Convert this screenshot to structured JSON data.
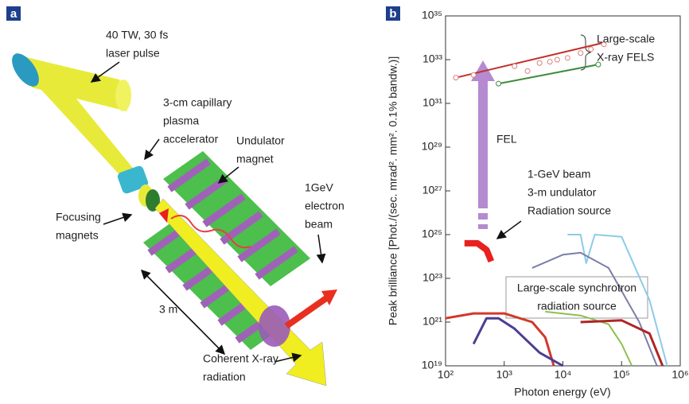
{
  "panel_a": {
    "label": "a",
    "laser": [
      "40 TW, 30 fs",
      "laser pulse"
    ],
    "accelerator": [
      "3-cm capillary",
      "plasma",
      "accelerator"
    ],
    "undulator": [
      "Undulator",
      "magnet"
    ],
    "beam": [
      "1GeV",
      "electron",
      "beam"
    ],
    "focusing": [
      "Focusing",
      "magnets"
    ],
    "length": "3 m",
    "radiation": [
      "Coherent X-ray",
      "radiation"
    ]
  },
  "chart_data": {
    "type": "line",
    "label": "b",
    "xlabel": "Photon energy (eV)",
    "ylabel": "Peak brilliance [Phot./(sec. mrad². mm². 0.1% bandw.)]",
    "log_x": true,
    "log_y": true,
    "xlim": [
      100,
      1000000
    ],
    "ylim": [
      1e+19,
      1e+35
    ],
    "xticks": [
      {
        "value": 100,
        "label": "10²"
      },
      {
        "value": 1000,
        "label": "10³"
      },
      {
        "value": 10000,
        "label": "10⁴"
      },
      {
        "value": 100000,
        "label": "10⁵"
      },
      {
        "value": 1000000,
        "label": "10⁶"
      }
    ],
    "yticks": [
      {
        "value": 1e+19,
        "label": "10¹⁹"
      },
      {
        "value": 1e+21,
        "label": "10²¹"
      },
      {
        "value": 1e+23,
        "label": "10²³"
      },
      {
        "value": 1e+25,
        "label": "10²⁵"
      },
      {
        "value": 1e+27,
        "label": "10²⁷"
      },
      {
        "value": 1e+29,
        "label": "10²⁹"
      },
      {
        "value": 1e+31,
        "label": "10³¹"
      },
      {
        "value": 1e+33,
        "label": "10³³"
      },
      {
        "value": 1e+35,
        "label": "10³⁵"
      }
    ],
    "annotations": {
      "fels": [
        "Large-scale",
        "X-ray FELS"
      ],
      "fel": "FEL",
      "source": [
        "1-GeV beam",
        "3-m undulator",
        "Radiation source"
      ],
      "synchrotron": [
        "Large-scale synchrotron",
        "radiation source"
      ]
    },
    "series": [
      {
        "color": "#c0302a",
        "line": true,
        "markers": false,
        "x": [
          150,
          50000
        ],
        "values": [
          1.5e+32,
          6e+33
        ]
      },
      {
        "color": "#d98080",
        "line": false,
        "markers": true,
        "x": [
          150,
          300,
          1500,
          2500,
          4000,
          6000,
          8000,
          12000,
          20000,
          30000,
          50000
        ],
        "values": [
          1.5e+32,
          2e+32,
          5e+32,
          3e+32,
          7e+32,
          8e+32,
          1e+33,
          1.2e+33,
          2e+33,
          3e+33,
          5e+33
        ]
      },
      {
        "color": "#3a8a3a",
        "line": true,
        "markers": true,
        "x": [
          800,
          40000
        ],
        "values": [
          8e+31,
          6e+32
        ]
      },
      {
        "color": "#e82020",
        "line": true,
        "markers": false,
        "x": [
          210,
          350,
          500,
          600
        ],
        "values": [
          4e+24,
          4e+24,
          2e+24,
          6e+23
        ]
      },
      {
        "color": "#d2382a",
        "line": true,
        "markers": false,
        "x": [
          100,
          300,
          1000,
          3000,
          5000,
          7000
        ],
        "values": [
          1.5e+21,
          2.5e+21,
          2.5e+21,
          1e+21,
          2e+20,
          1e+19
        ]
      },
      {
        "color": "#4a3e92",
        "line": true,
        "markers": false,
        "x": [
          300,
          500,
          800,
          1500,
          4000,
          10000
        ],
        "values": [
          1e+20,
          1.5e+21,
          1.5e+21,
          5e+20,
          4e+19,
          1e+19
        ]
      },
      {
        "color": "#8ccbe8",
        "line": true,
        "markers": false,
        "x": [
          12000,
          20000,
          25000,
          35000,
          100000,
          300000,
          600000
        ],
        "values": [
          1e+25,
          1e+25,
          5e+23,
          1e+25,
          8e+24,
          1e+22,
          1e+19
        ]
      },
      {
        "color": "#7a7fa8",
        "line": true,
        "markers": false,
        "x": [
          3000,
          10000,
          20000,
          60000,
          200000,
          400000
        ],
        "values": [
          3e+23,
          1.2e+24,
          1.5e+24,
          3e+23,
          1e+21,
          1e+19
        ]
      },
      {
        "color": "#8cbf50",
        "line": true,
        "markers": false,
        "x": [
          5000,
          20000,
          60000,
          100000,
          150000
        ],
        "values": [
          3e+21,
          2e+21,
          8e+20,
          1e+20,
          1e+19
        ]
      },
      {
        "color": "#b02525",
        "line": true,
        "markers": false,
        "x": [
          20000,
          100000,
          300000,
          500000
        ],
        "values": [
          1e+21,
          1.2e+21,
          3e+20,
          1e+19
        ]
      }
    ]
  }
}
